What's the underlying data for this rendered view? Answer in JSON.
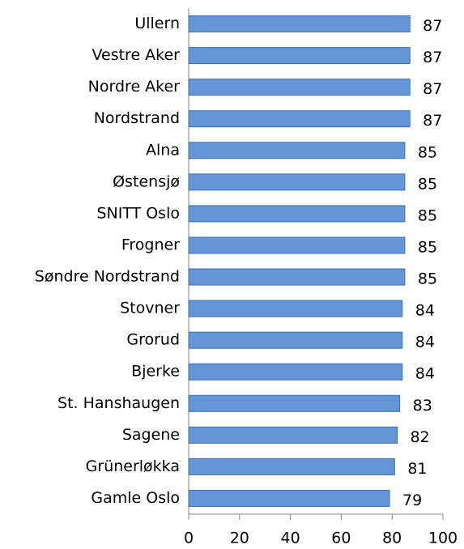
{
  "chart_data": {
    "type": "hbar",
    "categories": [
      "Ullern",
      "Vestre Aker",
      "Nordre Aker",
      "Nordstrand",
      "Alna",
      "Østensjø",
      "SNITT Oslo",
      "Frogner",
      "Søndre Nordstrand",
      "Stovner",
      "Grorud",
      "Bjerke",
      "St. Hanshaugen",
      "Sagene",
      "Grünerløkka",
      "Gamle Oslo"
    ],
    "values": [
      87,
      87,
      87,
      87,
      85,
      85,
      85,
      85,
      85,
      84,
      84,
      84,
      83,
      82,
      81,
      79
    ],
    "color": "#6495d6",
    "xlim": [
      0,
      100
    ],
    "xticks": [
      0,
      20,
      40,
      60,
      80,
      100
    ],
    "grid": false
  }
}
